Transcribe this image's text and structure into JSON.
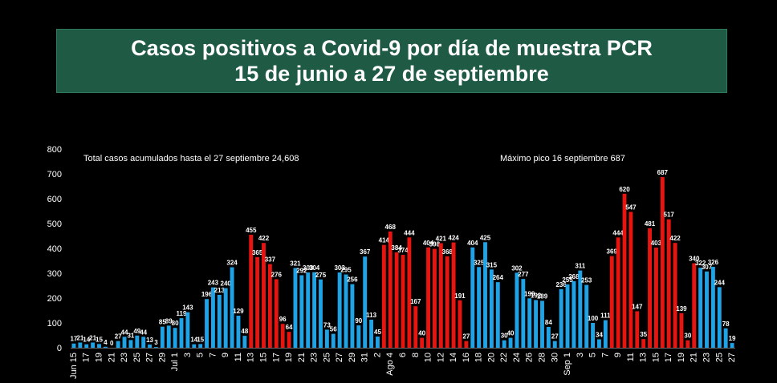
{
  "header": {
    "title_line1": "Casos positivos a Covid-9 por día de muestra PCR",
    "title_line2": "15 de junio a 27 de septiembre"
  },
  "annotations": {
    "total": "Total casos acumulados  hasta el 27 septiembre  24,608",
    "peak": "Máximo pico 16  septiembre 687"
  },
  "colors": {
    "blue": "#1ea3e6",
    "red": "#e8140f",
    "background": "#000000",
    "title_bg": "#1e5a44"
  },
  "chart_data": {
    "type": "bar",
    "ylim": [
      0,
      800
    ],
    "yticks": [
      0,
      100,
      200,
      300,
      400,
      500,
      600,
      700,
      800
    ],
    "grid": false,
    "xtick_labels": [
      "Jun 15",
      "17",
      "19",
      "21",
      "23",
      "25",
      "27",
      "29",
      "Jul 1",
      "3",
      "5",
      "7",
      "9",
      "11",
      "13",
      "15",
      "17",
      "19",
      "21",
      "23",
      "25",
      "27",
      "29",
      "31",
      "2",
      "Ago 4",
      "6",
      "8",
      "10",
      "12",
      "14",
      "16",
      "18",
      "20",
      "22",
      "24",
      "26",
      "28",
      "30",
      "Sep 1",
      "3",
      "5",
      "7",
      "9",
      "11",
      "13",
      "15",
      "17",
      "19",
      "21",
      "23",
      "25",
      "27"
    ],
    "values": [
      17,
      21,
      14,
      21,
      15,
      4,
      0,
      27,
      44,
      31,
      49,
      44,
      13,
      3,
      85,
      89,
      80,
      119,
      143,
      14,
      15,
      196,
      243,
      213,
      240,
      324,
      129,
      48,
      455,
      365,
      422,
      337,
      276,
      96,
      64,
      321,
      292,
      303,
      304,
      275,
      73,
      56,
      303,
      295,
      256,
      90,
      367,
      113,
      45,
      414,
      468,
      384,
      374,
      444,
      167,
      40,
      404,
      398,
      421,
      368,
      424,
      191,
      27,
      404,
      325,
      425,
      315,
      264,
      30,
      40,
      302,
      277,
      199,
      192,
      189,
      84,
      27,
      236,
      255,
      268,
      311,
      253,
      100,
      34,
      111,
      369,
      444,
      620,
      547,
      147,
      35,
      481,
      403,
      687,
      517,
      422,
      139,
      30,
      340,
      322,
      307,
      326,
      244,
      78,
      19
    ],
    "bar_colors": [
      "blue",
      "blue",
      "blue",
      "blue",
      "blue",
      "blue",
      "blue",
      "blue",
      "blue",
      "blue",
      "blue",
      "blue",
      "blue",
      "blue",
      "blue",
      "blue",
      "blue",
      "blue",
      "blue",
      "blue",
      "blue",
      "blue",
      "blue",
      "blue",
      "blue",
      "blue",
      "blue",
      "blue",
      "red",
      "red",
      "red",
      "red",
      "red",
      "red",
      "red",
      "blue",
      "blue",
      "blue",
      "blue",
      "blue",
      "blue",
      "blue",
      "blue",
      "blue",
      "blue",
      "blue",
      "blue",
      "blue",
      "blue",
      "red",
      "red",
      "red",
      "red",
      "red",
      "red",
      "red",
      "red",
      "red",
      "red",
      "red",
      "red",
      "red",
      "red",
      "blue",
      "blue",
      "blue",
      "blue",
      "blue",
      "blue",
      "blue",
      "blue",
      "blue",
      "blue",
      "blue",
      "blue",
      "blue",
      "blue",
      "blue",
      "blue",
      "blue",
      "blue",
      "blue",
      "blue",
      "blue",
      "blue",
      "red",
      "red",
      "red",
      "red",
      "red",
      "red",
      "red",
      "red",
      "red",
      "red",
      "red",
      "red",
      "red",
      "red",
      "blue",
      "blue",
      "blue",
      "blue",
      "blue",
      "blue",
      "blue"
    ]
  }
}
